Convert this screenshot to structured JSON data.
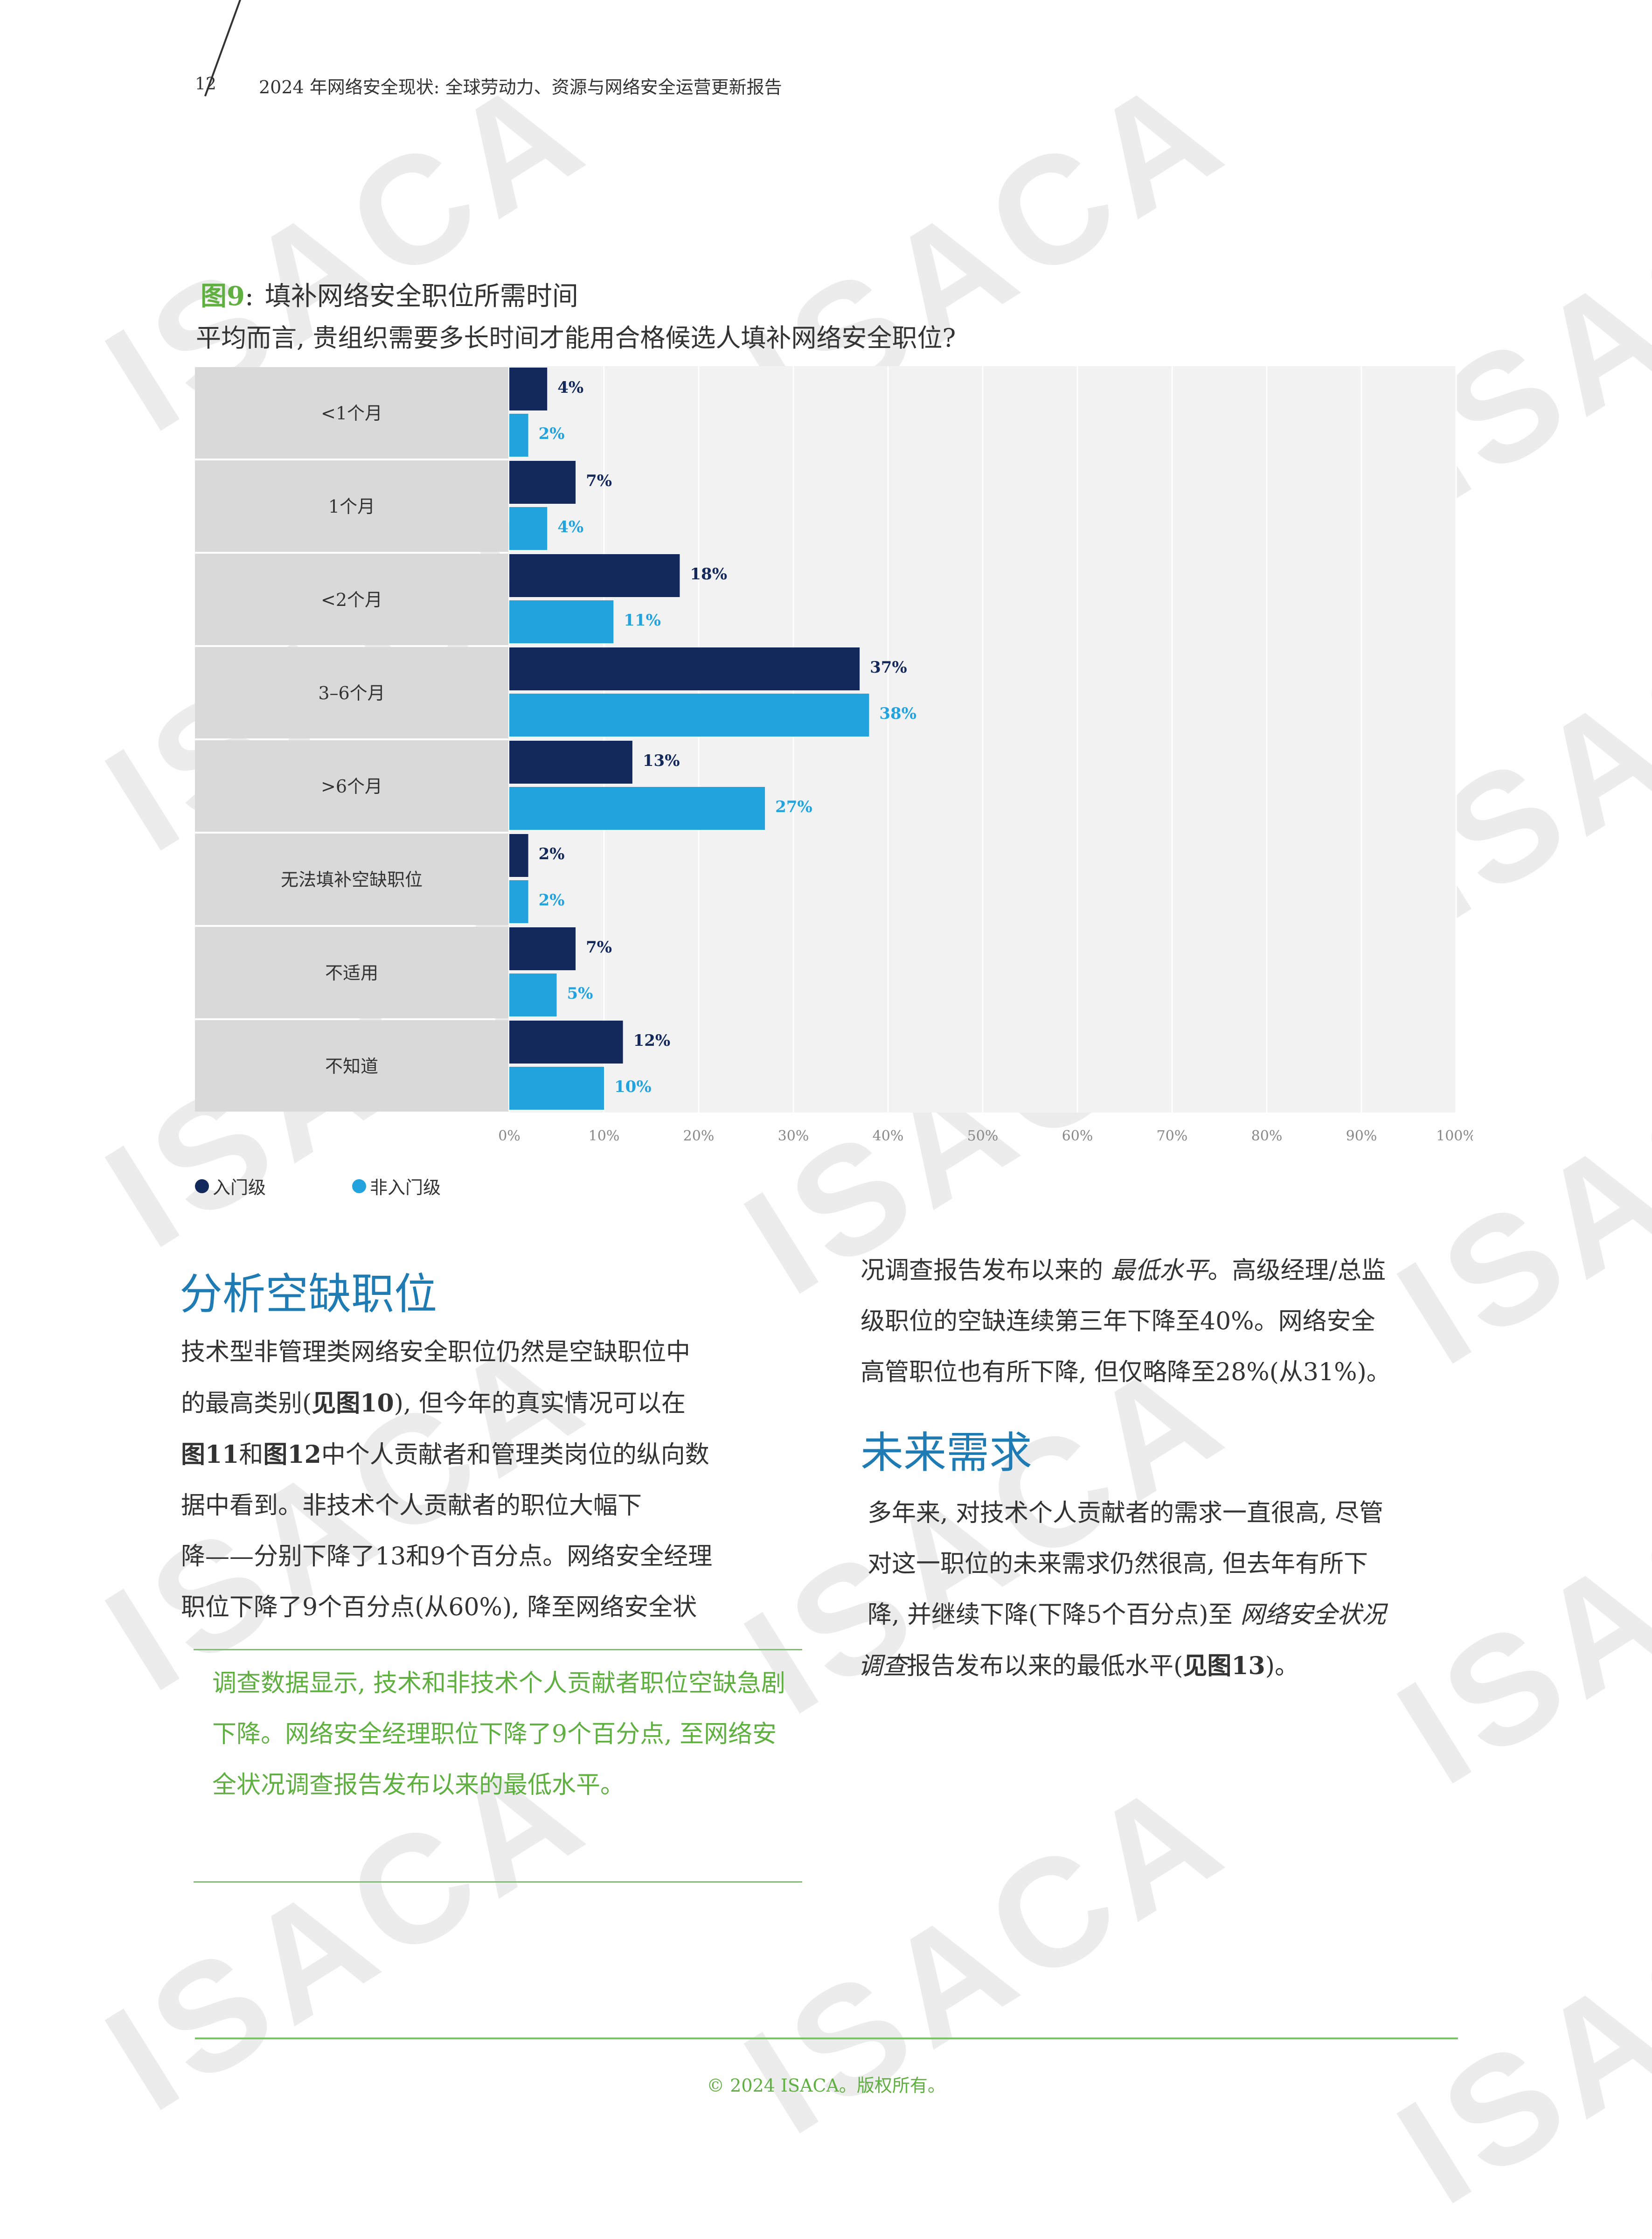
{
  "header": {
    "page_number": "12",
    "title": "2024 年网络安全现状: 全球劳动力、资源与网络安全运营更新报告"
  },
  "watermark_text": "ISACA",
  "figure": {
    "label": "图9",
    "sep": ":",
    "title": "填补网络安全职位所需时间",
    "subtitle": "平均而言, 贵组织需要多长时间才能用合格候选人填补网络安全职位?"
  },
  "chart_data": {
    "type": "bar",
    "orientation": "horizontal",
    "categories": [
      "<1个月",
      "1个月",
      "<2个月",
      "3–6个月",
      ">6个月",
      "无法填补空缺职位",
      "不适用",
      "不知道"
    ],
    "series": [
      {
        "name": "入门级",
        "values": [
          4,
          7,
          18,
          37,
          13,
          2,
          7,
          12
        ],
        "labels": [
          "4%",
          "7%",
          "18%",
          "37%",
          "13%",
          "2%",
          "7%",
          "12%"
        ],
        "color": "#13295b"
      },
      {
        "name": "非入门级",
        "values": [
          2,
          4,
          11,
          38,
          27,
          2,
          5,
          10
        ],
        "labels": [
          "2%",
          "4%",
          "11%",
          "38%",
          "27%",
          "2%",
          "5%",
          "10%"
        ],
        "color": "#22a3de"
      }
    ],
    "xlim": [
      0,
      100
    ],
    "xticks": [
      "0%",
      "10%",
      "20%",
      "30%",
      "40%",
      "50%",
      "60%",
      "70%",
      "80%",
      "90%",
      "100%"
    ],
    "grid": true,
    "legend_position": "bottom-left",
    "category_panel_color": "#d9d9d9",
    "plot_bg_color": "#f2f2f2"
  },
  "left_column": {
    "heading": "分析空缺职位",
    "para": [
      "技术型非管理类网络安全职位仍然是空缺职位中",
      "的最高类别(",
      "见图10",
      "), 但今年的真实情况可以在",
      "图11",
      "和",
      "图12",
      "中个人贡献者和管理类岗位的纵向数",
      "据中看到。非技术个人贡献者的职位大幅下",
      "降——分别下降了13和9个百分点。网络安全经理",
      "职位下降了9个百分点(从60%), 降至网络安全状"
    ],
    "callout": "调查数据显示, 技术和非技术个人贡献者职位空缺急剧下降。网络安全经理职位下降了9个百分点, 至网络安全状况调查报告发布以来的最低水平。"
  },
  "right_column": {
    "para1": [
      "况调查报告发布以来的 ",
      "最低水平",
      "。高级经理/总监",
      "级职位的空缺连续第三年下降至40%。网络安全",
      "高管职位也有所下降, 但仅略降至28%(从31%)。"
    ],
    "heading": "未来需求",
    "para2": [
      "多年来, 对技术个人贡献者的需求一直很高, 尽管",
      "对这一职位的未来需求仍然很高, 但去年有所下",
      "降, 并继续下降(下降5个百分点)至 ",
      "网络安全状况",
      "调查",
      "报告发布以来的最低水平(",
      "见图13",
      ")。"
    ]
  },
  "footer": {
    "text": "© 2024 ISACA。版权所有。"
  }
}
